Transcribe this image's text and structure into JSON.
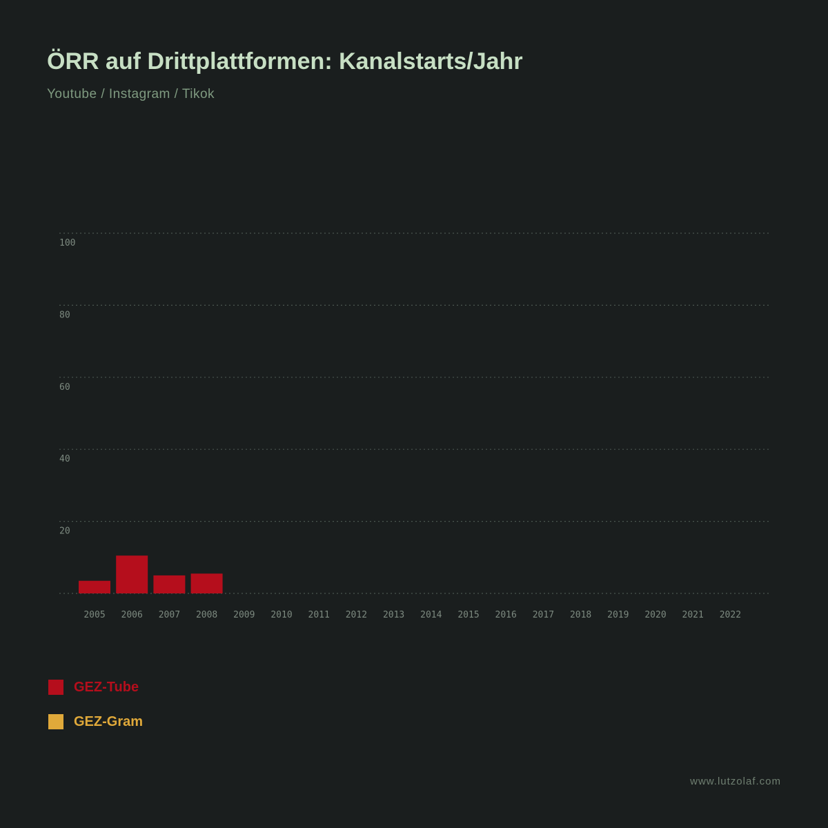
{
  "header": {
    "title": "ÖRR auf Drittplattformen: Kanalstarts/Jahr",
    "subtitle": "Youtube / Instagram / Tikok"
  },
  "footer": {
    "url": "www.lutzolaf.com"
  },
  "colors": {
    "background": "#1a1e1e",
    "gez_tube": "#b50e1c",
    "gez_gram": "#e0a93a",
    "grid": "#4a5650",
    "tick_text": "#7d8a80"
  },
  "chart_data": {
    "type": "bar",
    "title": "ÖRR auf Drittplattformen: Kanalstarts/Jahr",
    "subtitle": "Youtube / Instagram / Tikok",
    "xlabel": "",
    "ylabel": "",
    "ylim": [
      0,
      100
    ],
    "yticks": [
      20,
      40,
      60,
      80,
      100
    ],
    "grid": true,
    "legend_position": "bottom-left",
    "categories": [
      "2005",
      "2006",
      "2007",
      "2008",
      "2009",
      "2010",
      "2011",
      "2012",
      "2013",
      "2014",
      "2015",
      "2016",
      "2017",
      "2018",
      "2019",
      "2020",
      "2021",
      "2022"
    ],
    "series": [
      {
        "name": "GEZ-Tube",
        "color": "#b50e1c",
        "values": [
          3.5,
          10.5,
          5,
          5.5,
          0,
          0,
          0,
          0,
          0,
          0,
          0,
          0,
          0,
          0,
          0,
          0,
          0,
          0
        ]
      },
      {
        "name": "GEZ-Gram",
        "color": "#e0a93a",
        "values": [
          0,
          0,
          0,
          0,
          0,
          0,
          0,
          0,
          0,
          0,
          0,
          0,
          0,
          0,
          0,
          0,
          0,
          0
        ]
      }
    ]
  }
}
